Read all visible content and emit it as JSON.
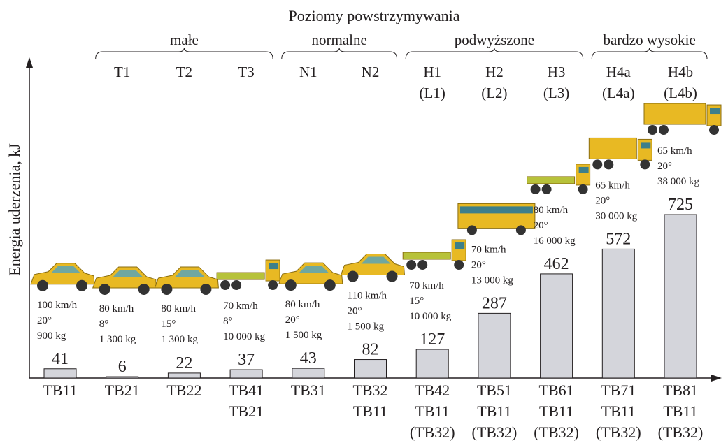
{
  "chart_data": {
    "type": "bar",
    "title": "Poziomy powstrzymywania",
    "y_label": "Energia uderzenia, kJ",
    "levels": [
      {
        "name": "małe",
        "classes": [
          [
            "T1"
          ],
          [
            "T2"
          ],
          [
            "T3"
          ]
        ]
      },
      {
        "name": "normalne",
        "classes": [
          [
            "N1"
          ],
          [
            "N2"
          ]
        ]
      },
      {
        "name": "podwyższone",
        "classes": [
          [
            "H1",
            "(L1)"
          ],
          [
            "H2",
            "(L2)"
          ],
          [
            "H3",
            "(L3)"
          ]
        ]
      },
      {
        "name": "bardzo wysokie",
        "classes": [
          [
            "H4a",
            "(L4a)"
          ],
          [
            "H4b",
            "(L4b)"
          ]
        ]
      }
    ],
    "categories": [
      [
        "TB11"
      ],
      [
        "TB21"
      ],
      [
        "TB22"
      ],
      [
        "TB41",
        "TB21"
      ],
      [
        "TB31"
      ],
      [
        "TB32",
        "TB11"
      ],
      [
        "TB42",
        "TB11",
        "(TB32)"
      ],
      [
        "TB51",
        "TB11",
        "(TB32)"
      ],
      [
        "TB61",
        "TB11",
        "(TB32)"
      ],
      [
        "TB71",
        "TB11",
        "(TB32)"
      ],
      [
        "TB81",
        "TB11",
        "(TB32)"
      ]
    ],
    "values": [
      41,
      6,
      22,
      37,
      43,
      82,
      127,
      287,
      462,
      572,
      725
    ],
    "conditions": [
      [
        "100 km/h",
        "20°",
        "900 kg"
      ],
      [
        "80 km/h",
        "8°",
        "1 300 kg"
      ],
      [
        "80 km/h",
        "15°",
        "1 300 kg"
      ],
      [
        "70 km/h",
        "8°",
        "10 000 kg"
      ],
      [
        "80 km/h",
        "20°",
        "1 500 kg"
      ],
      [
        "110 km/h",
        "20°",
        "1 500 kg"
      ],
      [
        "70 km/h",
        "15°",
        "10 000 kg"
      ],
      [
        "70 km/h",
        "20°",
        "13 000 kg"
      ],
      [
        "80 km/h",
        "20°",
        "16 000 kg"
      ],
      [
        "65 km/h",
        "20°",
        "30 000 kg"
      ],
      [
        "65 km/h",
        "20°",
        "38 000 kg"
      ]
    ],
    "color": "#d4d5db",
    "ylim": [
      0,
      1410
    ]
  }
}
